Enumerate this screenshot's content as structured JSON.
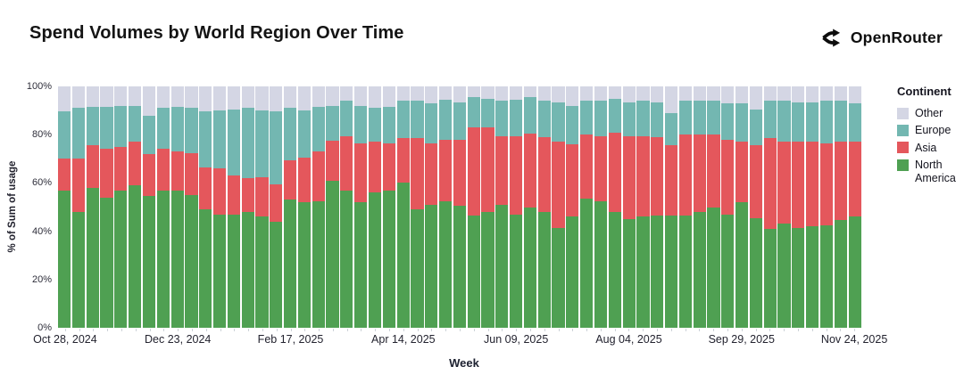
{
  "header": {
    "title": "Spend Volumes by World Region Over Time",
    "brand": "OpenRouter"
  },
  "chart_data": {
    "type": "bar",
    "stacked": true,
    "normalized_100": true,
    "title": "Spend Volumes by World Region Over Time",
    "x_axis_title": "Week",
    "y_axis_title": "% of Sum of usage",
    "ylim": [
      0,
      100
    ],
    "grid": false,
    "y_ticks": [
      "0%",
      "20%",
      "40%",
      "60%",
      "80%",
      "100%"
    ],
    "x_tick_labels": [
      "Oct 28, 2024",
      "Dec 23, 2024",
      "Feb 17, 2025",
      "Apr 14, 2025",
      "Jun 09, 2025",
      "Aug 04, 2025",
      "Sep 29, 2025",
      "Nov 24, 2025"
    ],
    "x_label_every_n_bars": 8,
    "categories": [
      "Oct 28, 2024",
      "Nov 04, 2024",
      "Nov 11, 2024",
      "Nov 18, 2024",
      "Nov 25, 2024",
      "Dec 02, 2024",
      "Dec 09, 2024",
      "Dec 16, 2024",
      "Dec 23, 2024",
      "Dec 30, 2024",
      "Jan 06, 2025",
      "Jan 13, 2025",
      "Jan 20, 2025",
      "Jan 27, 2025",
      "Feb 03, 2025",
      "Feb 10, 2025",
      "Feb 17, 2025",
      "Feb 24, 2025",
      "Mar 03, 2025",
      "Mar 10, 2025",
      "Mar 17, 2025",
      "Mar 24, 2025",
      "Mar 31, 2025",
      "Apr 07, 2025",
      "Apr 14, 2025",
      "Apr 21, 2025",
      "Apr 28, 2025",
      "May 05, 2025",
      "May 12, 2025",
      "May 19, 2025",
      "May 26, 2025",
      "Jun 02, 2025",
      "Jun 09, 2025",
      "Jun 16, 2025",
      "Jun 23, 2025",
      "Jun 30, 2025",
      "Jul 07, 2025",
      "Jul 14, 2025",
      "Jul 21, 2025",
      "Jul 28, 2025",
      "Aug 04, 2025",
      "Aug 11, 2025",
      "Aug 18, 2025",
      "Aug 25, 2025",
      "Sep 01, 2025",
      "Sep 08, 2025",
      "Sep 15, 2025",
      "Sep 22, 2025",
      "Sep 29, 2025",
      "Oct 06, 2025",
      "Oct 13, 2025",
      "Oct 20, 2025",
      "Oct 27, 2025",
      "Nov 03, 2025",
      "Nov 10, 2025",
      "Nov 17, 2025",
      "Nov 24, 2025"
    ],
    "series": [
      {
        "name": "North America",
        "color": "#4fa052",
        "values": [
          57,
          48,
          58,
          54,
          57,
          59,
          54.5,
          57,
          57,
          55,
          49,
          47,
          47,
          48,
          46,
          44,
          53,
          52,
          52.5,
          61,
          57,
          52,
          56,
          57,
          60,
          49,
          51,
          52.5,
          50.5,
          46.5,
          48,
          51,
          47,
          50,
          48,
          41.5,
          46,
          53.5,
          52.5,
          48,
          45,
          46,
          46.5,
          46.5,
          46.5,
          48,
          50,
          47,
          52,
          45.5,
          41,
          43,
          41.5,
          42,
          42.5,
          44.5,
          46
        ]
      },
      {
        "name": "Asia",
        "color": "#e4575c",
        "values": [
          13,
          22,
          17.5,
          20,
          18,
          18,
          17.5,
          17,
          16,
          17.5,
          17.5,
          19,
          16,
          14,
          16.5,
          15.5,
          16.5,
          18.5,
          20.5,
          16.5,
          22.5,
          24.5,
          21,
          19.5,
          18.5,
          29.5,
          25.5,
          25.5,
          27.5,
          36.5,
          35,
          28.5,
          32.5,
          30.5,
          31,
          35.5,
          30,
          26.5,
          27,
          33,
          34.5,
          33.5,
          32.5,
          29,
          33.5,
          32,
          30,
          31,
          25,
          30,
          37.5,
          34,
          35.5,
          35,
          34,
          32.5,
          31
        ]
      },
      {
        "name": "Europe",
        "color": "#73b7b1",
        "values": [
          19.5,
          21,
          16,
          17.5,
          17,
          15,
          16,
          17,
          18.5,
          18.5,
          23,
          24,
          27.5,
          29,
          27.5,
          30,
          21.5,
          19.5,
          18.5,
          14.5,
          14.5,
          15.5,
          14,
          15,
          15.5,
          15.5,
          16.5,
          16.5,
          15.5,
          12.5,
          12,
          14.5,
          15,
          15,
          15,
          16.5,
          16,
          14,
          14.5,
          14,
          14,
          14.5,
          14.5,
          13.5,
          14,
          14,
          14,
          15,
          16,
          15,
          15.5,
          17,
          16.5,
          16.5,
          17.5,
          17,
          16
        ]
      },
      {
        "name": "Other",
        "color": "#d4d6e4",
        "values": [
          10.5,
          9,
          8.5,
          8.5,
          8,
          8,
          12,
          9,
          8.5,
          9,
          10.5,
          10,
          9.5,
          9,
          10,
          10.5,
          9,
          10,
          8.5,
          8,
          6,
          8,
          9,
          8.5,
          6,
          6,
          7,
          5.5,
          6.5,
          4.5,
          5,
          6,
          5.5,
          4.5,
          6,
          6.5,
          8,
          6,
          6,
          5,
          6.5,
          6,
          6.5,
          11,
          6,
          6,
          6,
          7,
          7,
          9.5,
          6,
          6,
          6.5,
          6.5,
          6,
          6,
          7
        ]
      }
    ],
    "legend": {
      "title": "Continent",
      "position": "right",
      "entries": [
        "Other",
        "Europe",
        "Asia",
        "North America"
      ]
    }
  }
}
